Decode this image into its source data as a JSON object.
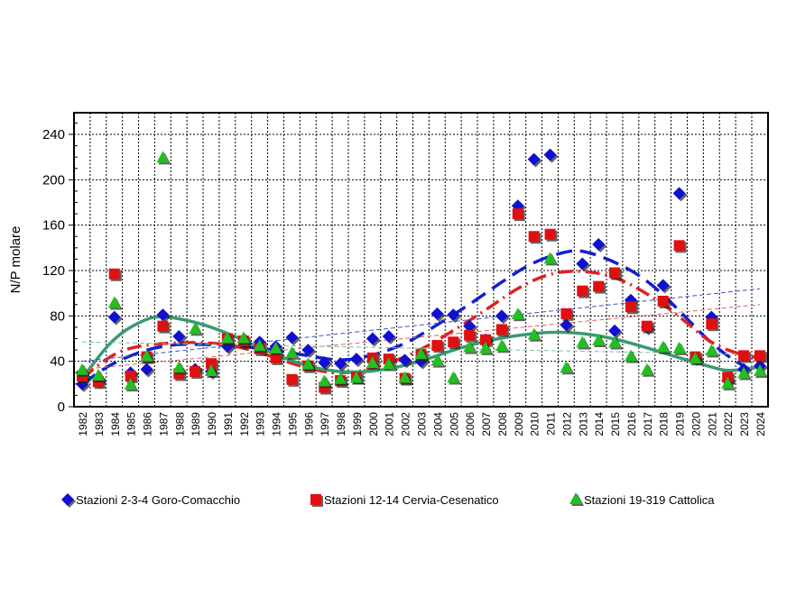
{
  "chart_data": {
    "type": "scatter",
    "title": "",
    "xlabel": "",
    "ylabel": "N/P molare",
    "ylim": [
      0,
      260
    ],
    "yticks": [
      0,
      40,
      80,
      120,
      160,
      200,
      240
    ],
    "grid": true,
    "legend_position": "bottom",
    "x": [
      1982,
      1983,
      1984,
      1985,
      1986,
      1987,
      1988,
      1989,
      1990,
      1991,
      1992,
      1993,
      1994,
      1995,
      1996,
      1997,
      1998,
      1999,
      2000,
      2001,
      2002,
      2003,
      2004,
      2005,
      2006,
      2007,
      2008,
      2009,
      2010,
      2011,
      2012,
      2013,
      2014,
      2015,
      2016,
      2017,
      2018,
      2019,
      2020,
      2021,
      2022,
      2023,
      2024
    ],
    "series": [
      {
        "name": "Stazioni 2-3-4 Goro-Comacchio",
        "color": "#1010d0",
        "marker": "diamond",
        "values": [
          20,
          23,
          79,
          30,
          33,
          81,
          62,
          33,
          31,
          53,
          57,
          57,
          53,
          61,
          50,
          39,
          38,
          42,
          60,
          62,
          41,
          40,
          82,
          81,
          71,
          59,
          80,
          177,
          218,
          222,
          72,
          126,
          143,
          67,
          94,
          70,
          107,
          188,
          43,
          79,
          23,
          33,
          36
        ]
      },
      {
        "name": "Stazioni 12-14 Cervia-Cesenatico",
        "color": "#e01010",
        "marker": "square",
        "values": [
          27,
          22,
          117,
          27,
          44,
          71,
          29,
          31,
          38,
          60,
          58,
          51,
          43,
          24,
          36,
          17,
          23,
          26,
          43,
          42,
          25,
          46,
          54,
          57,
          63,
          59,
          68,
          170,
          150,
          152,
          82,
          102,
          106,
          118,
          88,
          71,
          93,
          142,
          44,
          73,
          26,
          45,
          45
        ]
      },
      {
        "name": "Stazioni 19-319 Cattolica",
        "color": "#20c020",
        "marker": "triangle",
        "values": [
          32,
          27,
          91,
          19,
          44,
          219,
          34,
          68,
          31,
          60,
          60,
          53,
          51,
          47,
          37,
          22,
          24,
          25,
          38,
          37,
          25,
          46,
          40,
          25,
          52,
          51,
          53,
          81,
          63,
          130,
          34,
          56,
          58,
          56,
          44,
          32,
          52,
          51,
          42,
          49,
          20,
          29,
          31
        ]
      }
    ],
    "trendlines": [
      {
        "series": 0,
        "kind": "polynomial",
        "color": "#1020d0",
        "points": [
          [
            1982,
            20
          ],
          [
            1984,
            40
          ],
          [
            1987,
            55
          ],
          [
            1990,
            55
          ],
          [
            1993,
            52
          ],
          [
            1996,
            45
          ],
          [
            1998,
            40
          ],
          [
            2000,
            45
          ],
          [
            2002,
            55
          ],
          [
            2004,
            72
          ],
          [
            2006,
            90
          ],
          [
            2008,
            110
          ],
          [
            2010,
            128
          ],
          [
            2012,
            137
          ],
          [
            2013,
            138
          ],
          [
            2015,
            128
          ],
          [
            2017,
            112
          ],
          [
            2019,
            85
          ],
          [
            2021,
            55
          ],
          [
            2023,
            35
          ],
          [
            2024,
            30
          ]
        ]
      },
      {
        "series": 1,
        "kind": "polynomial",
        "color": "#e02020",
        "points": [
          [
            1982,
            25
          ],
          [
            1984,
            48
          ],
          [
            1986,
            55
          ],
          [
            1989,
            57
          ],
          [
            1991,
            55
          ],
          [
            1993,
            48
          ],
          [
            1995,
            38
          ],
          [
            1997,
            30
          ],
          [
            1999,
            30
          ],
          [
            2001,
            38
          ],
          [
            2003,
            50
          ],
          [
            2005,
            67
          ],
          [
            2007,
            85
          ],
          [
            2009,
            105
          ],
          [
            2011,
            118
          ],
          [
            2013,
            120
          ],
          [
            2015,
            115
          ],
          [
            2017,
            100
          ],
          [
            2019,
            80
          ],
          [
            2021,
            55
          ],
          [
            2023,
            45
          ],
          [
            2024,
            43
          ]
        ]
      },
      {
        "series": 2,
        "kind": "polynomial",
        "color": "#3a9a70",
        "points": [
          [
            1982,
            25
          ],
          [
            1984,
            62
          ],
          [
            1986,
            78
          ],
          [
            1987,
            80
          ],
          [
            1989,
            75
          ],
          [
            1991,
            65
          ],
          [
            1993,
            52
          ],
          [
            1995,
            40
          ],
          [
            1997,
            32
          ],
          [
            1999,
            30
          ],
          [
            2001,
            33
          ],
          [
            2003,
            40
          ],
          [
            2005,
            50
          ],
          [
            2007,
            58
          ],
          [
            2009,
            63
          ],
          [
            2011,
            66
          ],
          [
            2013,
            65
          ],
          [
            2015,
            60
          ],
          [
            2017,
            52
          ],
          [
            2019,
            43
          ],
          [
            2021,
            35
          ],
          [
            2022,
            31
          ],
          [
            2024,
            35
          ]
        ]
      },
      {
        "series": 0,
        "kind": "linear",
        "color": "#4050d0",
        "points": [
          [
            1982,
            40
          ],
          [
            2024,
            104
          ]
        ]
      },
      {
        "series": 1,
        "kind": "linear",
        "color": "#e06060",
        "points": [
          [
            1982,
            33
          ],
          [
            2024,
            90
          ]
        ]
      },
      {
        "series": 2,
        "kind": "linear",
        "color": "#80c0a0",
        "points": [
          [
            1982,
            57
          ],
          [
            2024,
            46
          ]
        ]
      }
    ]
  }
}
